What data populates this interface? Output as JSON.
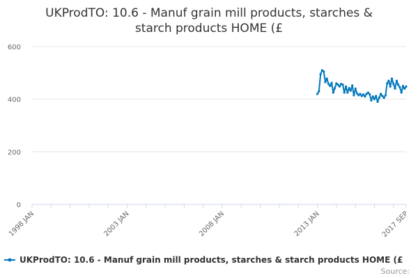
{
  "chart_data": {
    "type": "line",
    "title_lines": [
      "UKProdTO: 10.6 - Manuf grain mill products, starches &",
      "starch products HOME (£"
    ],
    "y_ticks": [
      0,
      200,
      400,
      600
    ],
    "ylim": [
      0,
      600
    ],
    "x_range": [
      "1998-01",
      "2017-09"
    ],
    "x_ticks": [
      "1998 JAN",
      "2003 JAN",
      "2008 JAN",
      "2013 JAN",
      "2017 SEP"
    ],
    "gridlines": "horizontal",
    "legend_position": "bottom",
    "series": [
      {
        "name": "UKProdTO: 10.6 - Manuf grain mill products, starches & starch products HOME (£",
        "color": "#0077bb",
        "x": [
          "2013-01",
          "2013-02",
          "2013-03",
          "2013-04",
          "2013-05",
          "2013-06",
          "2013-07",
          "2013-08",
          "2013-09",
          "2013-10",
          "2013-11",
          "2013-12",
          "2014-01",
          "2014-02",
          "2014-03",
          "2014-04",
          "2014-05",
          "2014-06",
          "2014-07",
          "2014-08",
          "2014-09",
          "2014-10",
          "2014-11",
          "2014-12",
          "2015-01",
          "2015-02",
          "2015-03",
          "2015-04",
          "2015-05",
          "2015-06",
          "2015-07",
          "2015-08",
          "2015-09",
          "2015-10",
          "2015-11",
          "2015-12",
          "2016-01",
          "2016-02",
          "2016-03",
          "2016-04",
          "2016-05",
          "2016-06",
          "2016-07",
          "2016-08",
          "2016-09",
          "2016-10",
          "2016-11",
          "2016-12",
          "2017-01",
          "2017-02",
          "2017-03",
          "2017-04",
          "2017-05",
          "2017-06",
          "2017-07",
          "2017-08",
          "2017-09"
        ],
        "values": [
          420,
          430,
          495,
          510,
          505,
          465,
          478,
          458,
          450,
          462,
          425,
          442,
          460,
          455,
          448,
          458,
          455,
          425,
          448,
          425,
          442,
          432,
          452,
          415,
          440,
          422,
          415,
          420,
          412,
          418,
          410,
          420,
          425,
          418,
          395,
          410,
          400,
          412,
          390,
          405,
          420,
          412,
          405,
          415,
          460,
          470,
          448,
          478,
          458,
          440,
          470,
          455,
          445,
          425,
          450,
          440,
          448
        ]
      }
    ],
    "credit": "Source:"
  }
}
